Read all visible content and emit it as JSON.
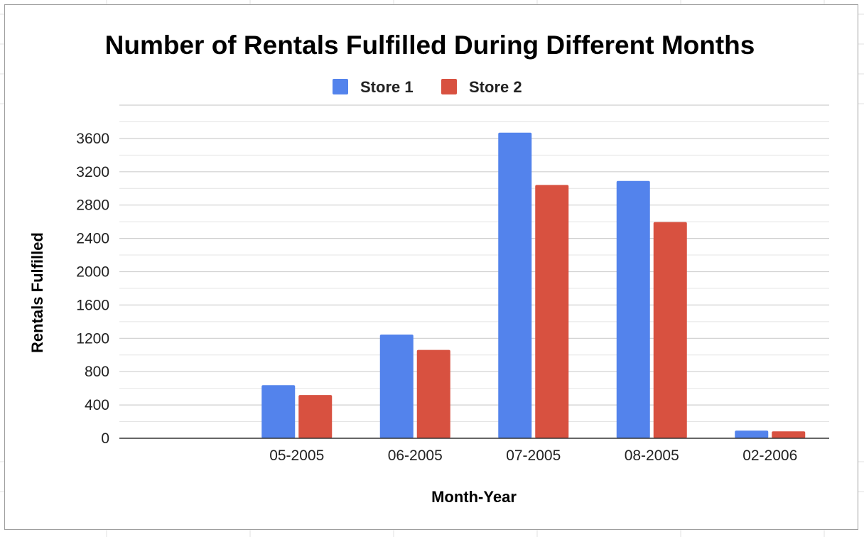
{
  "chart_data": {
    "type": "bar",
    "title": "Number of Rentals Fulfilled During Different Months",
    "xlabel": "Month-Year",
    "ylabel": "Rentals Fulfilled",
    "categories": [
      "",
      "05-2005",
      "06-2005",
      "07-2005",
      "08-2005",
      "02-2006"
    ],
    "series": [
      {
        "name": "Store 1",
        "color": "#5383ec",
        "values": [
          0,
          637,
          1245,
          3670,
          3090,
          92
        ]
      },
      {
        "name": "Store 2",
        "color": "#d85140",
        "values": [
          0,
          519,
          1061,
          3042,
          2596,
          83
        ]
      }
    ],
    "ylim": [
      0,
      4000
    ],
    "yticks": [
      0,
      400,
      800,
      1200,
      1600,
      2000,
      2400,
      2800,
      3200,
      3600
    ],
    "grid": true,
    "legend_position": "top-center"
  }
}
